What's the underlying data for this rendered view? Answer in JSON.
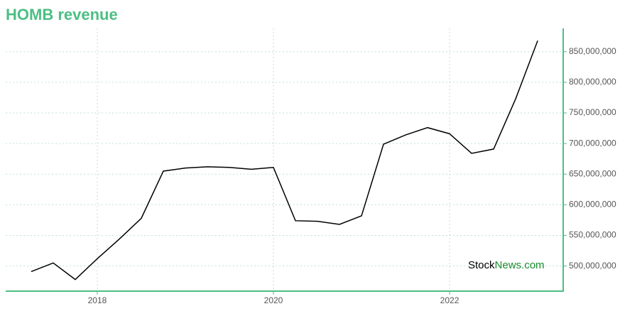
{
  "chart_data": {
    "type": "line",
    "title": "HOMB revenue",
    "x": [
      2017.25,
      2017.5,
      2017.75,
      2018,
      2018.25,
      2018.5,
      2018.75,
      2019,
      2019.25,
      2019.5,
      2019.75,
      2020,
      2020.25,
      2020.5,
      2020.75,
      2021,
      2021.25,
      2021.5,
      2021.75,
      2022,
      2022.25,
      2022.5,
      2022.75,
      2023
    ],
    "series": [
      {
        "name": "HOMB revenue",
        "color": "#000000",
        "values": [
          491000000,
          505000000,
          478000000,
          512000000,
          544000000,
          578000000,
          655000000,
          660000000,
          662000000,
          661000000,
          658000000,
          661000000,
          574000000,
          573000000,
          568000000,
          582000000,
          699000000,
          714000000,
          726000000,
          716000000,
          684000000,
          691000000,
          773000000,
          868000000
        ]
      }
    ],
    "xlim": [
      2016.96,
      2023.29
    ],
    "xticks": [
      2018,
      2020,
      2022
    ],
    "ylim": [
      459000000,
      888000000
    ],
    "yticks": [
      {
        "value": 500000000,
        "label": "500,000,000"
      },
      {
        "value": 550000000,
        "label": "550,000,000"
      },
      {
        "value": 600000000,
        "label": "600,000,000"
      },
      {
        "value": 650000000,
        "label": "650,000,000"
      },
      {
        "value": 700000000,
        "label": "700,000,000"
      },
      {
        "value": 750000000,
        "label": "750,000,000"
      },
      {
        "value": 800000000,
        "label": "800,000,000"
      },
      {
        "value": 850000000,
        "label": "850,000,000"
      }
    ],
    "grid": true,
    "watermark": [
      "Stock",
      "News.com"
    ]
  }
}
